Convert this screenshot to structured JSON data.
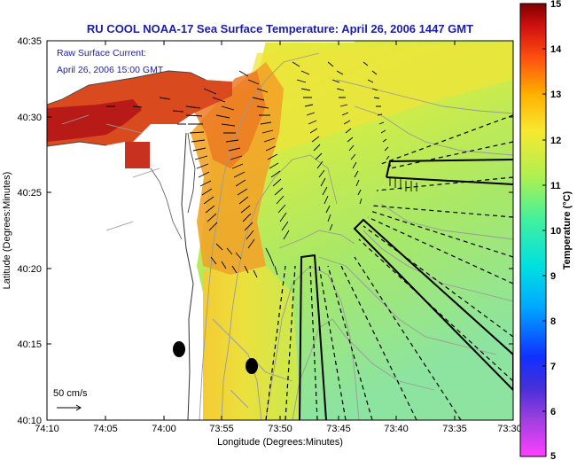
{
  "title": "RU COOL  NOAA-17  Sea Surface Temperature:  April 26, 2006 1447 GMT",
  "notes": {
    "raw_current": "Raw Surface Current:",
    "current_time": "April 26, 2006 15:00 GMT",
    "scale": "50 cm/s"
  },
  "axes": {
    "xlabel": "Longitude (Degrees:Minutes)",
    "ylabel": "Latitude (Degrees:Minutes)",
    "xticks": [
      "74:10",
      "74:05",
      "74:00",
      "73:55",
      "73:50",
      "73:45",
      "73:40",
      "73:35",
      "73:30"
    ],
    "yticks": [
      "40:35",
      "40:30",
      "40:25",
      "40:20",
      "40:15",
      "40:10"
    ]
  },
  "colorbar": {
    "label": "Temperature (°C)",
    "ticks": [
      "15",
      "14",
      "13",
      "12",
      "11",
      "10",
      "9",
      "8",
      "7",
      "6",
      "5"
    ],
    "range": [
      5,
      15
    ],
    "stops": [
      "#ff40ff",
      "#6a3cc8",
      "#1030ff",
      "#00b8ff",
      "#00e8c0",
      "#80f070",
      "#e8f040",
      "#ffc000",
      "#ff7010",
      "#d01010",
      "#800000"
    ]
  },
  "map_colors": {
    "land": "#ffffff",
    "warm_coast": "#d8401e",
    "hot_core": "#b81818",
    "mid_warm": "#f09020",
    "yellow_band": "#f0d838",
    "offshore_yellow": "#e6f040",
    "offshore_green": "#b8e860",
    "cool_teal": "#88e4a0"
  }
}
